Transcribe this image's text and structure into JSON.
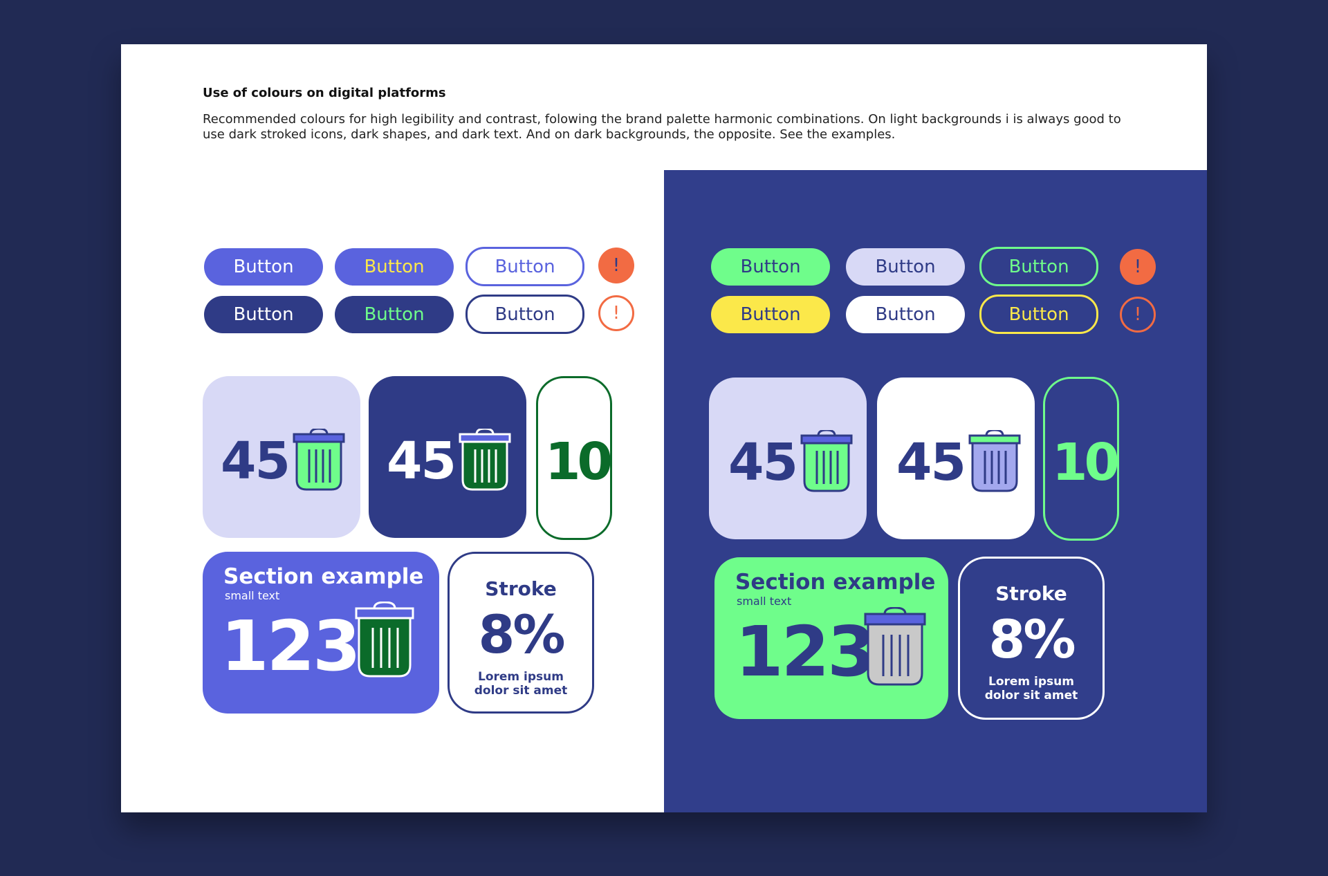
{
  "header": {
    "title": "Use of colours on digital platforms",
    "description": "Recommended colours for high legibility and contrast, folowing the brand palette harmonic combinations. On light backgrounds i is always good to use dark stroked icons, dark shapes, and dark text. And on dark backgrounds, the opposite. See the examples."
  },
  "light": {
    "buttons": [
      "Button",
      "Button",
      "Button",
      "Button",
      "Button",
      "Button"
    ],
    "alerts": [
      "!",
      "!"
    ],
    "tiles": [
      "45",
      "45",
      "10"
    ],
    "section": {
      "title": "Section example",
      "small": "small text",
      "number": "123"
    },
    "stroke": {
      "title": "Stroke",
      "percent": "8%",
      "line1": "Lorem ipsum",
      "line2": "dolor sit amet"
    }
  },
  "dark": {
    "buttons": [
      "Button",
      "Button",
      "Button",
      "Button",
      "Button",
      "Button"
    ],
    "alerts": [
      "!",
      "!"
    ],
    "tiles": [
      "45",
      "45",
      "10"
    ],
    "section": {
      "title": "Section example",
      "small": "small text",
      "number": "123"
    },
    "stroke": {
      "title": "Stroke",
      "percent": "8%",
      "line1": "Lorem ipsum",
      "line2": "dolor sit amet"
    }
  },
  "palette": {
    "navy": "#2f3b86",
    "dark_navy": "#313e8b",
    "violet": "#5a63de",
    "lavender": "#d8d9f6",
    "mint": "#6ffd8b",
    "green": "#0b6b2a",
    "yellow": "#fbe84a",
    "orange": "#f26b43",
    "background": "#212a54"
  }
}
